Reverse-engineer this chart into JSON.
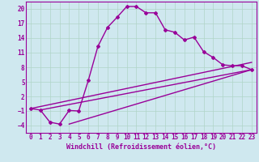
{
  "background_color": "#cfe8ef",
  "grid_color": "#b0d4c8",
  "line_color": "#990099",
  "marker_style": "D",
  "marker_size": 2.0,
  "line_width": 1.0,
  "xlim": [
    -0.5,
    23.5
  ],
  "ylim": [
    -5.5,
    21.5
  ],
  "yticks": [
    -4,
    -1,
    2,
    5,
    8,
    11,
    14,
    17,
    20
  ],
  "xticks": [
    0,
    1,
    2,
    3,
    4,
    5,
    6,
    7,
    8,
    9,
    10,
    11,
    12,
    13,
    14,
    15,
    16,
    17,
    18,
    19,
    20,
    21,
    22,
    23
  ],
  "xlabel": "Windchill (Refroidissement éolien,°C)",
  "xlabel_fontsize": 6.0,
  "tick_fontsize": 5.5,
  "line1_x": [
    0,
    1,
    2,
    3,
    4,
    5,
    6,
    7,
    8,
    9,
    10,
    11,
    12,
    13,
    14,
    15,
    16,
    17,
    18,
    19,
    20,
    21,
    22,
    23
  ],
  "line1_y": [
    -0.5,
    -0.8,
    -3.3,
    -3.7,
    -0.9,
    -1.0,
    5.3,
    12.3,
    16.2,
    18.3,
    20.5,
    20.5,
    19.2,
    19.2,
    15.7,
    15.2,
    13.6,
    14.2,
    11.2,
    10.0,
    8.5,
    8.3,
    8.3,
    7.5
  ],
  "straight_line1_x": [
    0,
    23
  ],
  "straight_line1_y": [
    -0.5,
    9.0
  ],
  "straight_line2_x": [
    1,
    23
  ],
  "straight_line2_y": [
    -0.8,
    7.5
  ],
  "straight_line3_x": [
    4,
    23
  ],
  "straight_line3_y": [
    -3.7,
    7.5
  ]
}
